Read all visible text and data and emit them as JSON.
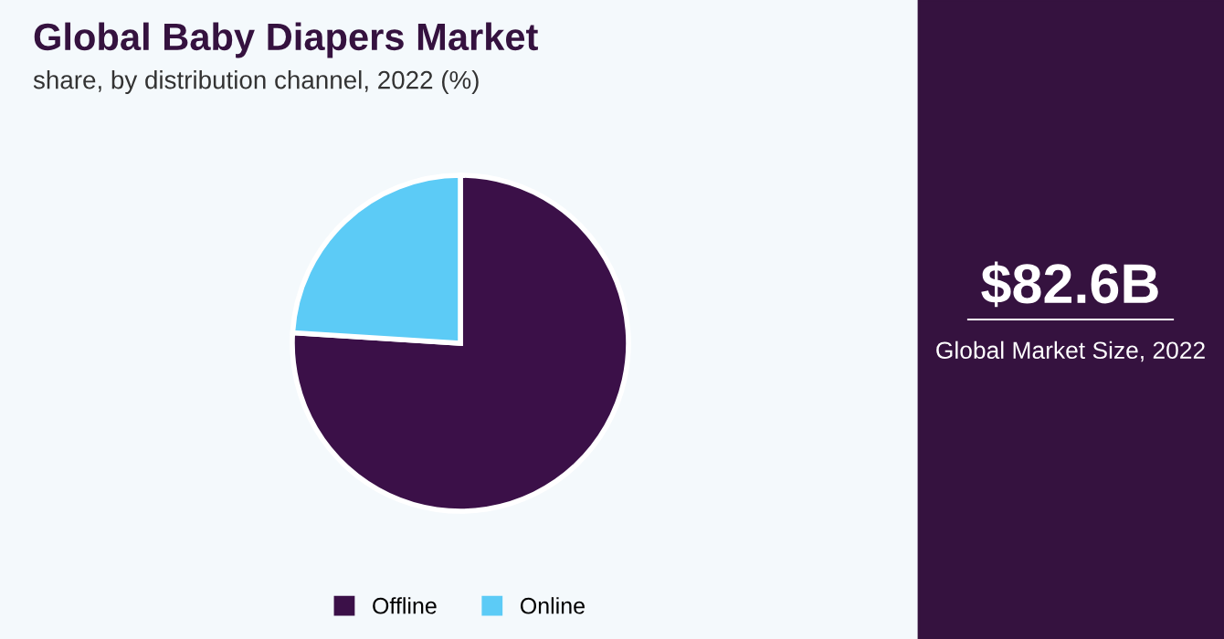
{
  "chart_data": {
    "type": "pie",
    "title": "Global Baby Diapers Market",
    "subtitle": "share, by distribution channel, 2022 (%)",
    "categories": [
      "Offline",
      "Online"
    ],
    "values": [
      76,
      24
    ],
    "colors": [
      "#3b1048",
      "#5ccbf6"
    ],
    "legend": "bottom",
    "annotations": [
      "$82.6B",
      "Global Market Size, 2022"
    ]
  }
}
